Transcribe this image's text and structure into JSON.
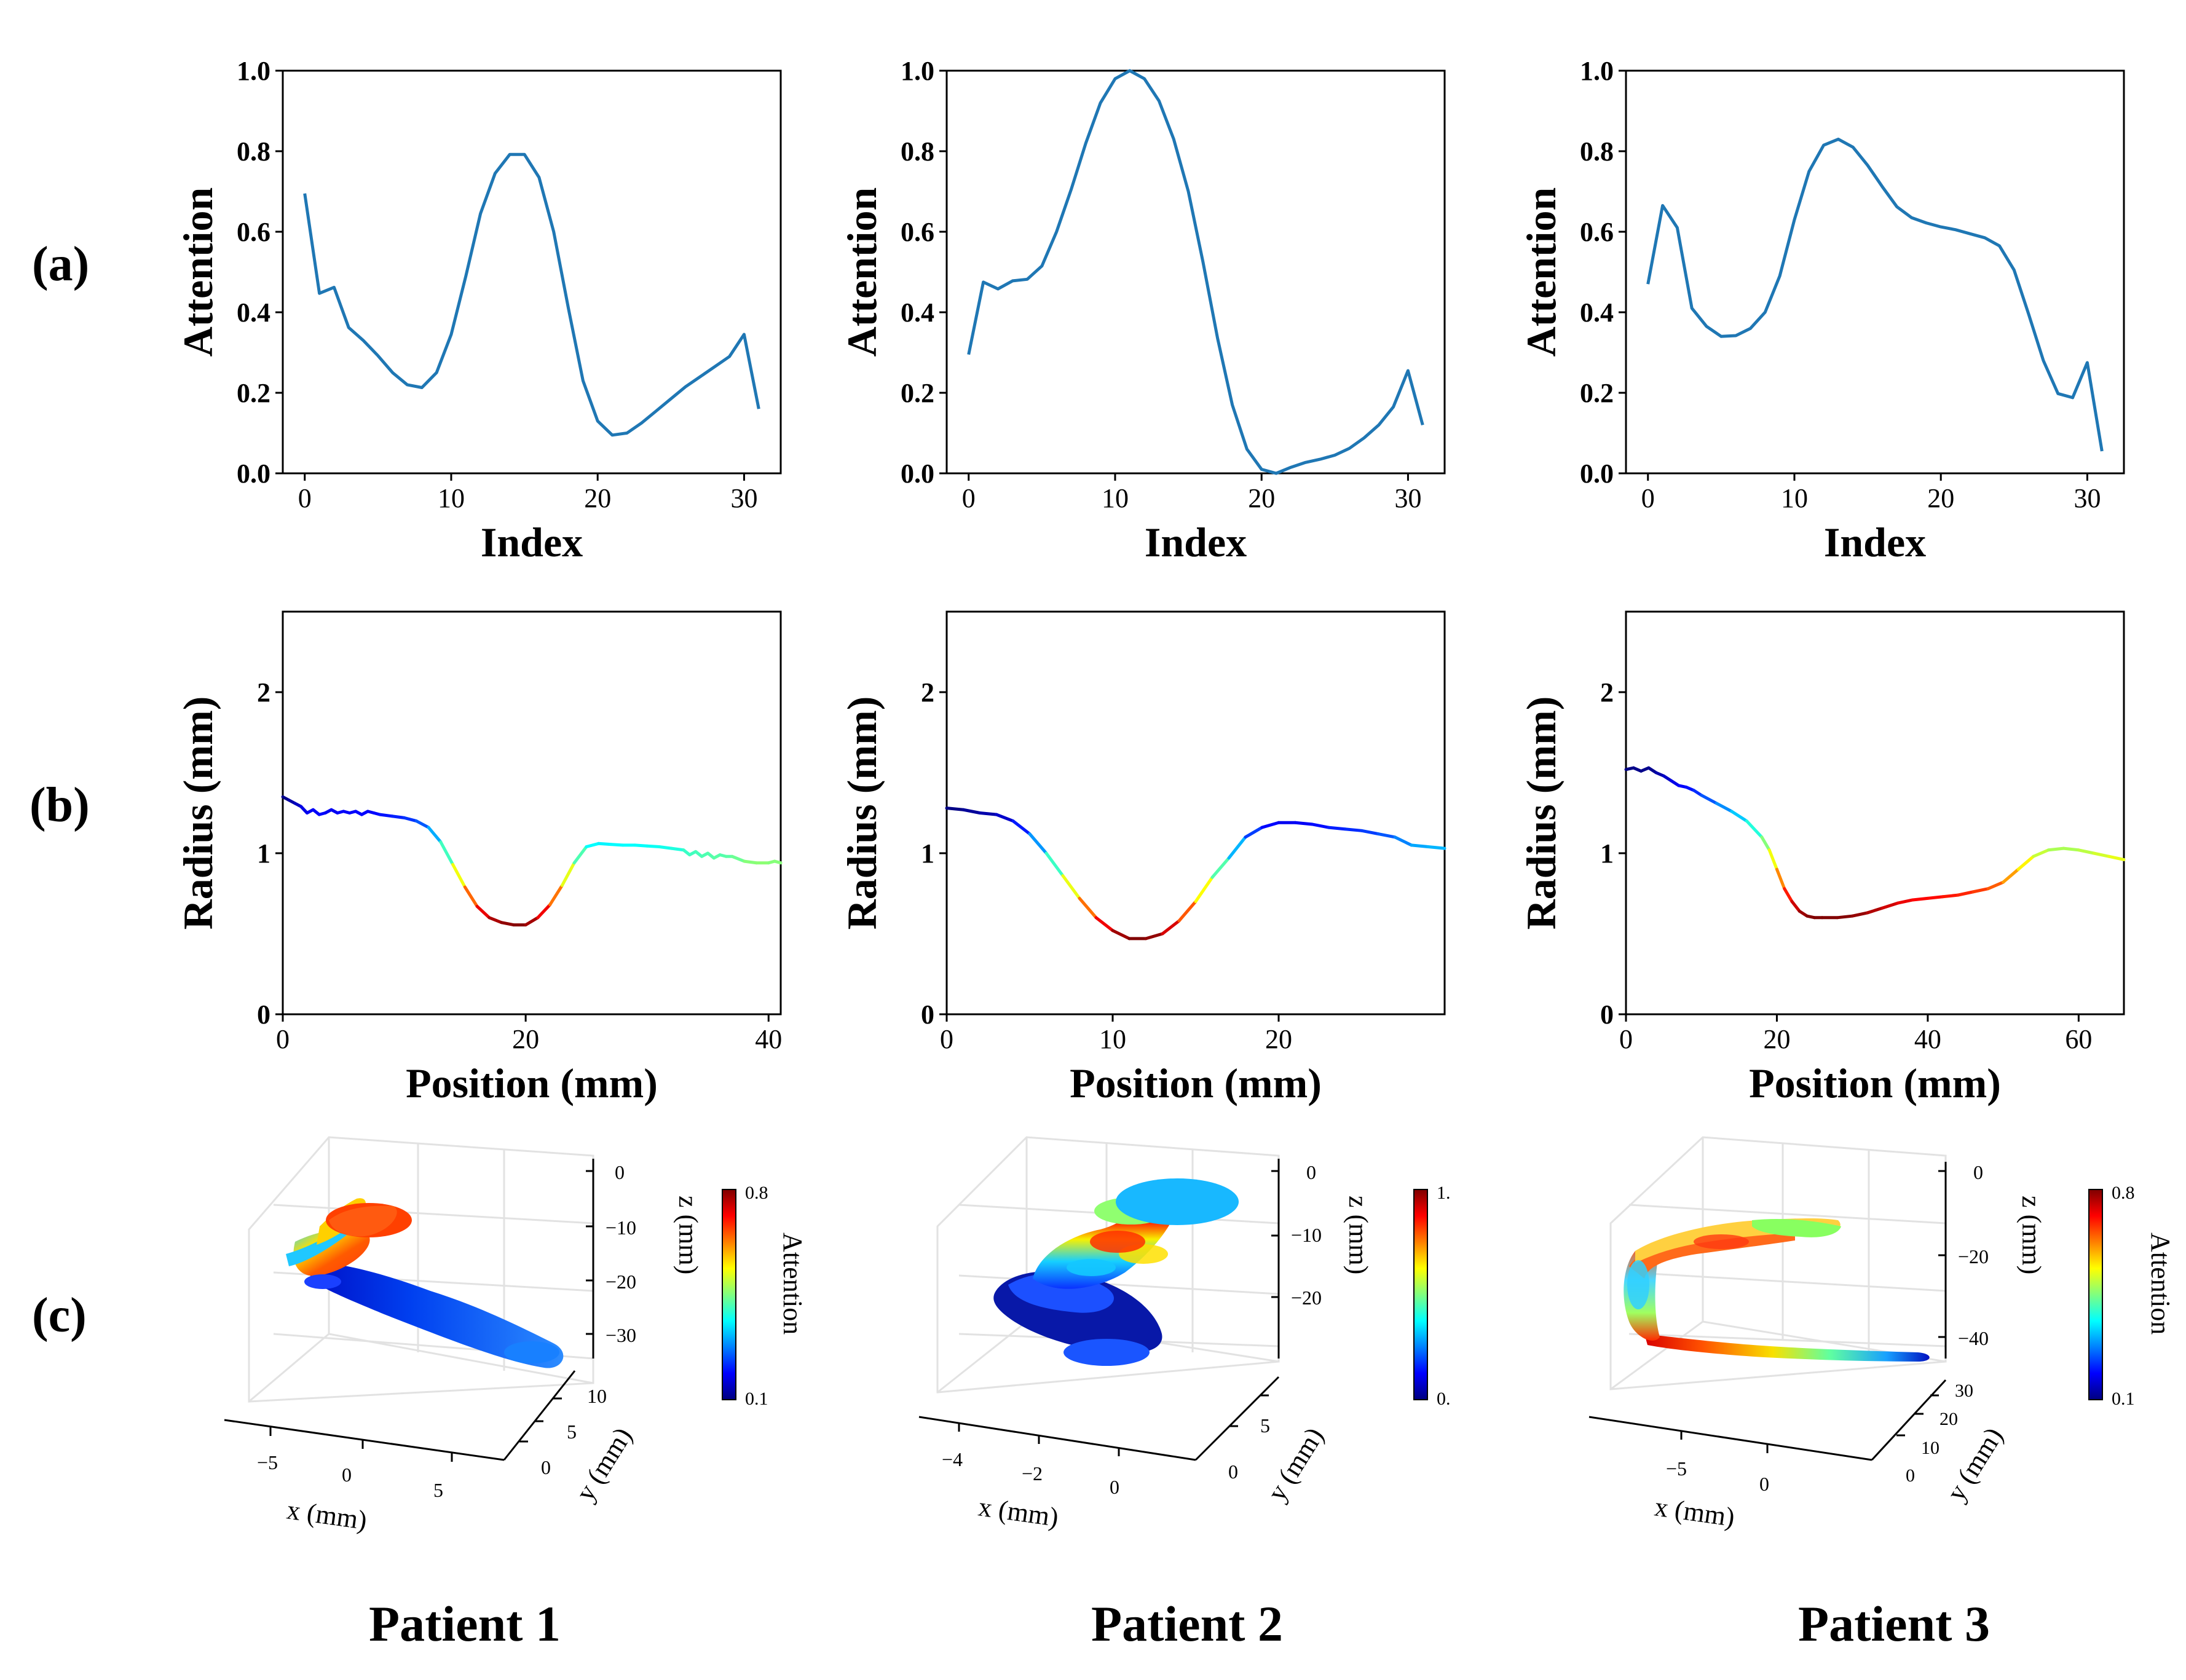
{
  "row_labels": [
    "(a)",
    "(b)",
    "(c)"
  ],
  "patients": [
    "Patient 1",
    "Patient 2",
    "Patient 3"
  ],
  "colors": {
    "line": "#1f77b4",
    "axis": "#000000"
  },
  "chart_data": [
    {
      "id": "a1",
      "type": "line",
      "title": "",
      "xlabel": "Index",
      "ylabel": "Attention",
      "xlim": [
        -1.5,
        32.5
      ],
      "ylim": [
        0,
        1.0
      ],
      "xticks": [
        0,
        10,
        20,
        30
      ],
      "yticks": [
        0.0,
        0.2,
        0.4,
        0.6,
        0.8,
        1.0
      ],
      "ytick_labels": [
        "0.0",
        "0.2",
        "0.4",
        "0.6",
        "0.8",
        "1.0"
      ],
      "x": [
        0,
        1,
        2,
        3,
        4,
        5,
        6,
        7,
        8,
        9,
        10,
        11,
        12,
        13,
        14,
        15,
        16,
        17,
        18,
        19,
        20,
        21,
        22,
        23,
        24,
        25,
        26,
        27,
        28,
        29,
        30,
        31
      ],
      "y": [
        0.695,
        0.447,
        0.462,
        0.362,
        0.33,
        0.292,
        0.25,
        0.22,
        0.213,
        0.25,
        0.345,
        0.49,
        0.645,
        0.745,
        0.792,
        0.792,
        0.735,
        0.6,
        0.41,
        0.23,
        0.13,
        0.095,
        0.1,
        0.125,
        0.155,
        0.185,
        0.215,
        0.24,
        0.265,
        0.29,
        0.345,
        0.16
      ]
    },
    {
      "id": "a2",
      "type": "line",
      "title": "",
      "xlabel": "Index",
      "ylabel": "Attention",
      "xlim": [
        -1.5,
        32.5
      ],
      "ylim": [
        0,
        1.0
      ],
      "xticks": [
        0,
        10,
        20,
        30
      ],
      "yticks": [
        0.0,
        0.2,
        0.4,
        0.6,
        0.8,
        1.0
      ],
      "ytick_labels": [
        "0.0",
        "0.2",
        "0.4",
        "0.6",
        "0.8",
        "1.0"
      ],
      "x": [
        0,
        1,
        2,
        3,
        4,
        5,
        6,
        7,
        8,
        9,
        10,
        11,
        12,
        13,
        14,
        15,
        16,
        17,
        18,
        19,
        20,
        21,
        22,
        23,
        24,
        25,
        26,
        27,
        28,
        29,
        30,
        31
      ],
      "y": [
        0.295,
        0.475,
        0.458,
        0.478,
        0.482,
        0.515,
        0.6,
        0.705,
        0.82,
        0.92,
        0.98,
        1.0,
        0.98,
        0.925,
        0.83,
        0.7,
        0.525,
        0.335,
        0.17,
        0.06,
        0.01,
        0.0,
        0.015,
        0.027,
        0.035,
        0.045,
        0.062,
        0.088,
        0.12,
        0.165,
        0.255,
        0.12
      ]
    },
    {
      "id": "a3",
      "type": "line",
      "title": "",
      "xlabel": "Index",
      "ylabel": "Attention",
      "xlim": [
        -1.5,
        32.5
      ],
      "ylim": [
        0,
        1.0
      ],
      "xticks": [
        0,
        10,
        20,
        30
      ],
      "yticks": [
        0.0,
        0.2,
        0.4,
        0.6,
        0.8,
        1.0
      ],
      "ytick_labels": [
        "0.0",
        "0.2",
        "0.4",
        "0.6",
        "0.8",
        "1.0"
      ],
      "x": [
        0,
        1,
        2,
        3,
        4,
        5,
        6,
        7,
        8,
        9,
        10,
        11,
        12,
        13,
        14,
        15,
        16,
        17,
        18,
        19,
        20,
        21,
        22,
        23,
        24,
        25,
        26,
        27,
        28,
        29,
        30,
        31
      ],
      "y": [
        0.47,
        0.665,
        0.61,
        0.41,
        0.365,
        0.34,
        0.342,
        0.36,
        0.4,
        0.49,
        0.63,
        0.75,
        0.815,
        0.83,
        0.81,
        0.765,
        0.712,
        0.662,
        0.635,
        0.622,
        0.612,
        0.605,
        0.595,
        0.585,
        0.565,
        0.505,
        0.395,
        0.28,
        0.198,
        0.188,
        0.275,
        0.055
      ]
    },
    {
      "id": "b1",
      "type": "line",
      "title": "",
      "xlabel": "Position (mm)",
      "ylabel": "Radius (mm)",
      "xlim": [
        0,
        41
      ],
      "ylim": [
        0,
        2.5
      ],
      "xticks": [
        0,
        20,
        40
      ],
      "yticks": [
        0,
        1,
        2
      ],
      "ytick_labels": [
        "0",
        "1",
        "2"
      ],
      "colormap": "jet",
      "color_range": [
        0.55,
        1.35
      ],
      "x": [
        0,
        0.5,
        1,
        1.5,
        2,
        2.5,
        3,
        3.5,
        4,
        4.5,
        5,
        5.5,
        6,
        6.5,
        7,
        7.5,
        8,
        9,
        10,
        11,
        12,
        13,
        14,
        15,
        16,
        17,
        18,
        19,
        20,
        21,
        22,
        23,
        24,
        25,
        26,
        27,
        28,
        29,
        30,
        31,
        32,
        33,
        33.5,
        34,
        34.5,
        35,
        35.5,
        36,
        36.5,
        37,
        38,
        39,
        40,
        40.5,
        41
      ],
      "y": [
        1.35,
        1.33,
        1.31,
        1.29,
        1.25,
        1.27,
        1.24,
        1.25,
        1.27,
        1.25,
        1.26,
        1.25,
        1.26,
        1.24,
        1.26,
        1.25,
        1.24,
        1.23,
        1.22,
        1.2,
        1.16,
        1.07,
        0.93,
        0.79,
        0.67,
        0.6,
        0.57,
        0.555,
        0.555,
        0.6,
        0.68,
        0.8,
        0.94,
        1.04,
        1.06,
        1.055,
        1.05,
        1.05,
        1.045,
        1.04,
        1.03,
        1.02,
        0.99,
        1.01,
        0.98,
        1.0,
        0.97,
        0.99,
        0.98,
        0.98,
        0.95,
        0.94,
        0.94,
        0.95,
        0.94
      ]
    },
    {
      "id": "b2",
      "type": "line",
      "title": "",
      "xlabel": "Position (mm)",
      "ylabel": "Radius (mm)",
      "xlim": [
        0,
        30
      ],
      "ylim": [
        0,
        2.5
      ],
      "xticks": [
        0,
        10,
        20
      ],
      "yticks": [
        0,
        1,
        2
      ],
      "ytick_labels": [
        "0",
        "1",
        "2"
      ],
      "colormap": "jet",
      "color_range": [
        0.47,
        1.28
      ],
      "x": [
        0,
        1,
        2,
        3,
        4,
        5,
        6,
        7,
        8,
        9,
        10,
        11,
        12,
        13,
        14,
        15,
        16,
        17,
        18,
        19,
        20,
        21,
        22,
        23,
        24,
        25,
        26,
        27,
        28,
        29,
        30
      ],
      "y": [
        1.28,
        1.27,
        1.25,
        1.24,
        1.2,
        1.12,
        1.0,
        0.86,
        0.72,
        0.6,
        0.52,
        0.47,
        0.47,
        0.5,
        0.58,
        0.7,
        0.85,
        0.97,
        1.1,
        1.16,
        1.19,
        1.19,
        1.18,
        1.16,
        1.15,
        1.14,
        1.12,
        1.1,
        1.05,
        1.04,
        1.03
      ]
    },
    {
      "id": "b3",
      "type": "line",
      "title": "",
      "xlabel": "Position (mm)",
      "ylabel": "Radius (mm)",
      "xlim": [
        0,
        66
      ],
      "ylim": [
        0,
        2.5
      ],
      "xticks": [
        0,
        20,
        40,
        60
      ],
      "yticks": [
        0,
        1,
        2
      ],
      "ytick_labels": [
        "0",
        "1",
        "2"
      ],
      "colormap": "jet",
      "color_range": [
        0.6,
        1.53
      ],
      "x": [
        0,
        1,
        2,
        3,
        4,
        5,
        6,
        7,
        8,
        9,
        10,
        12,
        14,
        16,
        18,
        19,
        20,
        21,
        22,
        23,
        24,
        25,
        26,
        28,
        30,
        32,
        34,
        36,
        38,
        40,
        42,
        44,
        46,
        48,
        50,
        52,
        54,
        56,
        58,
        60,
        62,
        64,
        66
      ],
      "y": [
        1.52,
        1.53,
        1.51,
        1.53,
        1.5,
        1.48,
        1.45,
        1.42,
        1.41,
        1.39,
        1.36,
        1.31,
        1.26,
        1.2,
        1.1,
        1.02,
        0.9,
        0.78,
        0.7,
        0.64,
        0.61,
        0.6,
        0.6,
        0.6,
        0.61,
        0.63,
        0.66,
        0.69,
        0.71,
        0.72,
        0.73,
        0.74,
        0.76,
        0.78,
        0.82,
        0.9,
        0.98,
        1.02,
        1.03,
        1.02,
        1.0,
        0.98,
        0.96
      ]
    }
  ],
  "panels3d": [
    {
      "id": "c1",
      "xlabel": "x (mm)",
      "ylabel": "y (mm)",
      "zlabel": "z (mm)",
      "xticks": [
        "−5",
        "0",
        "5"
      ],
      "yticks": [
        "0",
        "5",
        "10"
      ],
      "zticks": [
        "0",
        "−10",
        "−20",
        "−30"
      ],
      "colorbar": {
        "min": "0.1",
        "max": "0.8",
        "label": "Attention"
      }
    },
    {
      "id": "c2",
      "xlabel": "x (mm)",
      "ylabel": "y (mm)",
      "zlabel": "z (mm)",
      "xticks": [
        "−4",
        "−2",
        "0"
      ],
      "yticks": [
        "0",
        "5"
      ],
      "zticks": [
        "0",
        "−10",
        "−20"
      ],
      "colorbar": {
        "min": "0.",
        "max": "1.",
        "label": ""
      }
    },
    {
      "id": "c3",
      "xlabel": "x (mm)",
      "ylabel": "y (mm)",
      "zlabel": "z (mm)",
      "xticks": [
        "−5",
        "0"
      ],
      "yticks": [
        "0",
        "10",
        "20",
        "30"
      ],
      "zticks": [
        "0",
        "−20",
        "−40"
      ],
      "colorbar": {
        "min": "0.1",
        "max": "0.8",
        "label": "Attention"
      }
    }
  ]
}
